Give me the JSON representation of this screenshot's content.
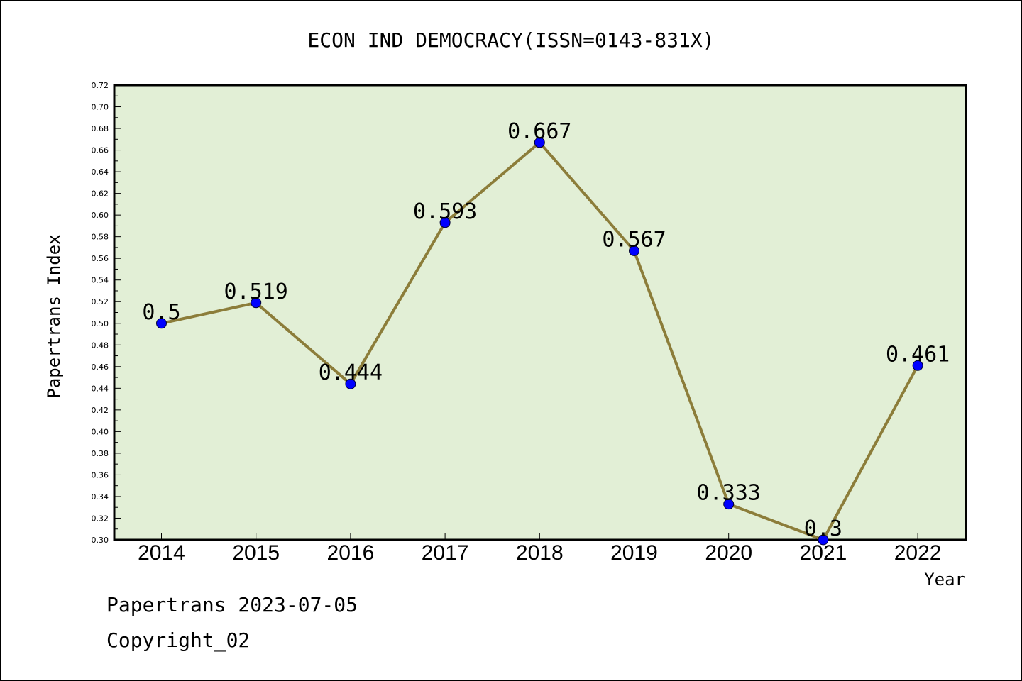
{
  "chart_data": {
    "type": "line",
    "title": "ECON IND DEMOCRACY(ISSN=0143-831X)",
    "xlabel": "Year",
    "ylabel": "Papertrans Index",
    "categories": [
      "2014",
      "2015",
      "2016",
      "2017",
      "2018",
      "2019",
      "2020",
      "2021",
      "2022"
    ],
    "values": [
      0.5,
      0.519,
      0.444,
      0.593,
      0.667,
      0.567,
      0.333,
      0.3,
      0.461
    ],
    "data_labels": [
      "0.5",
      "0.519",
      "0.444",
      "0.593",
      "0.667",
      "0.567",
      "0.333",
      "0.3",
      "0.461"
    ],
    "ylim": [
      0.3,
      0.72
    ],
    "yticks": [
      "0.30",
      "0.32",
      "0.34",
      "0.36",
      "0.38",
      "0.40",
      "0.42",
      "0.44",
      "0.46",
      "0.48",
      "0.50",
      "0.52",
      "0.54",
      "0.56",
      "0.58",
      "0.60",
      "0.62",
      "0.64",
      "0.66",
      "0.68",
      "0.70",
      "0.72"
    ],
    "grid": false,
    "colors": {
      "plot_background": "#e2efd6",
      "line": "#8c7d3a",
      "marker": "#0000ff"
    }
  },
  "footer": {
    "line1": "Papertrans 2023-07-05",
    "line2": "Copyright_02"
  }
}
